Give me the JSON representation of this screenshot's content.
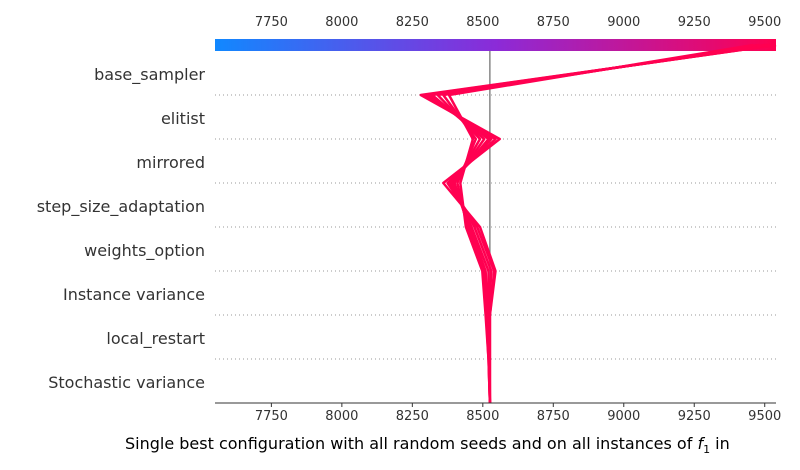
{
  "chart_data": {
    "type": "line",
    "title": "",
    "xlabel_prefix": "Single best configuration with all random seeds and on all instances of ",
    "xlabel_symbol": "f",
    "xlabel_subscript": "1",
    "xlabel_suffix": " in",
    "x_ticks": [
      "7750",
      "8000",
      "8250",
      "8500",
      "8750",
      "9000",
      "9250",
      "9500"
    ],
    "x_tick_values": [
      7750,
      8000,
      8250,
      8500,
      8750,
      9000,
      9250,
      9500
    ],
    "xlim": [
      7550,
      9540
    ],
    "base_value": 8525,
    "colorbar": {
      "start": "#1188ff",
      "mid": "#8b2bd8",
      "end": "#ff0051"
    },
    "line_color": "#ff0051",
    "features": [
      "base_sampler",
      "elitist",
      "mirrored",
      "step_size_adaptation",
      "weights_option",
      "Instance variance",
      "local_restart",
      "Stochastic variance"
    ],
    "series": [
      {
        "values": [
          9540,
          8280,
          8560,
          8360,
          8490,
          8545,
          8525,
          8525,
          8525
        ]
      },
      {
        "values": [
          9540,
          8290,
          8545,
          8375,
          8480,
          8540,
          8525,
          8525,
          8525
        ]
      },
      {
        "values": [
          9530,
          8300,
          8530,
          8385,
          8470,
          8530,
          8522,
          8524,
          8525
        ]
      },
      {
        "values": [
          9520,
          8310,
          8520,
          8390,
          8460,
          8520,
          8520,
          8523,
          8525
        ]
      },
      {
        "values": [
          9510,
          8320,
          8505,
          8395,
          8455,
          8510,
          8518,
          8522,
          8525
        ]
      },
      {
        "values": [
          9500,
          8340,
          8490,
          8400,
          8450,
          8505,
          8515,
          8521,
          8525
        ]
      },
      {
        "values": [
          9480,
          8360,
          8475,
          8410,
          8445,
          8500,
          8512,
          8520,
          8525
        ]
      },
      {
        "values": [
          9460,
          8380,
          8465,
          8420,
          8440,
          8498,
          8510,
          8520,
          8525
        ]
      }
    ]
  }
}
